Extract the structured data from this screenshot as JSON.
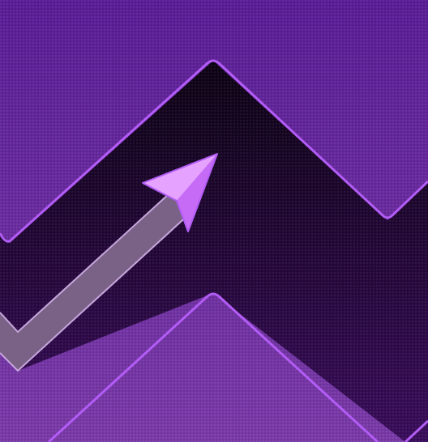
{
  "scene": {
    "kind": "wave-arrow-gameplay",
    "icons": {
      "player": "arrow-icon"
    },
    "colors": {
      "block_top": "#5a1d96",
      "block_bottom": "#7a3aa8",
      "corridor_top": "#0d0314",
      "corridor_bottom": "#3a0d5c",
      "outline": "#b25cf5",
      "trail_fill": "#7a6287",
      "trail_edge": "#c6a6dc",
      "arrow_light": "#e6a2ff",
      "arrow_main": "#c56bf5",
      "arrow_dark": "#9a3fd6"
    }
  }
}
